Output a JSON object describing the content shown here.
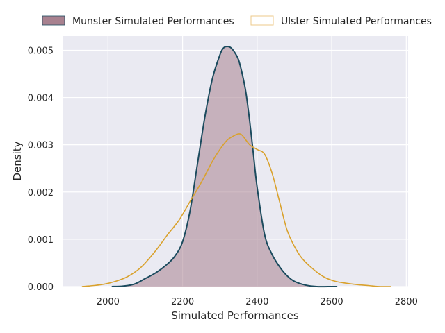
{
  "chart_data": {
    "type": "area",
    "title": "",
    "xlabel": "Simulated Performances",
    "ylabel": "Density",
    "xlim": [
      1880,
      2805
    ],
    "ylim": [
      0,
      0.0053
    ],
    "x_ticks": [
      2000,
      2200,
      2400,
      2600,
      2800
    ],
    "y_ticks": [
      0.0,
      0.001,
      0.002,
      0.003,
      0.004,
      0.005
    ],
    "x_tick_labels": [
      "2000",
      "2200",
      "2400",
      "2600",
      "2800"
    ],
    "y_tick_labels": [
      "0.000",
      "0.001",
      "0.002",
      "0.003",
      "0.004",
      "0.005"
    ],
    "grid": true,
    "legend_position": "top",
    "series": [
      {
        "name": "Munster Simulated Performances",
        "style": "filled",
        "line_color": "#1b4b5e",
        "fill_color": "#a8818f",
        "x": [
          2010,
          2040,
          2070,
          2100,
          2130,
          2160,
          2180,
          2200,
          2220,
          2240,
          2260,
          2280,
          2300,
          2310,
          2320,
          2330,
          2340,
          2350,
          2360,
          2370,
          2380,
          2390,
          2400,
          2420,
          2440,
          2460,
          2480,
          2500,
          2530,
          2560,
          2590,
          2615
        ],
        "y": [
          0.0,
          1e-05,
          5e-05,
          0.00017,
          0.0003,
          0.00048,
          0.00065,
          0.00095,
          0.0016,
          0.0026,
          0.0036,
          0.0044,
          0.0049,
          0.00505,
          0.00508,
          0.00505,
          0.00495,
          0.0048,
          0.0045,
          0.0041,
          0.0035,
          0.0028,
          0.0021,
          0.0011,
          0.00068,
          0.00042,
          0.00023,
          0.00011,
          3e-05,
          0.0,
          0.0,
          0.0
        ]
      },
      {
        "name": "Ulster Simulated Performances",
        "style": "outline",
        "line_color": "#d9a12c",
        "x": [
          1930,
          1960,
          1990,
          2020,
          2050,
          2080,
          2100,
          2130,
          2160,
          2190,
          2220,
          2250,
          2280,
          2300,
          2320,
          2340,
          2350,
          2360,
          2380,
          2400,
          2420,
          2440,
          2460,
          2480,
          2500,
          2520,
          2550,
          2580,
          2610,
          2640,
          2670,
          2700,
          2730,
          2760
        ],
        "y": [
          0.0,
          2e-05,
          5e-05,
          0.00011,
          0.0002,
          0.00035,
          0.0005,
          0.00078,
          0.0011,
          0.0014,
          0.0018,
          0.0022,
          0.00265,
          0.0029,
          0.0031,
          0.0032,
          0.00323,
          0.0032,
          0.003,
          0.0029,
          0.0028,
          0.0024,
          0.0018,
          0.0012,
          0.00085,
          0.0006,
          0.00037,
          0.0002,
          0.00011,
          7e-05,
          4e-05,
          2e-05,
          0.0,
          0.0
        ]
      }
    ]
  }
}
